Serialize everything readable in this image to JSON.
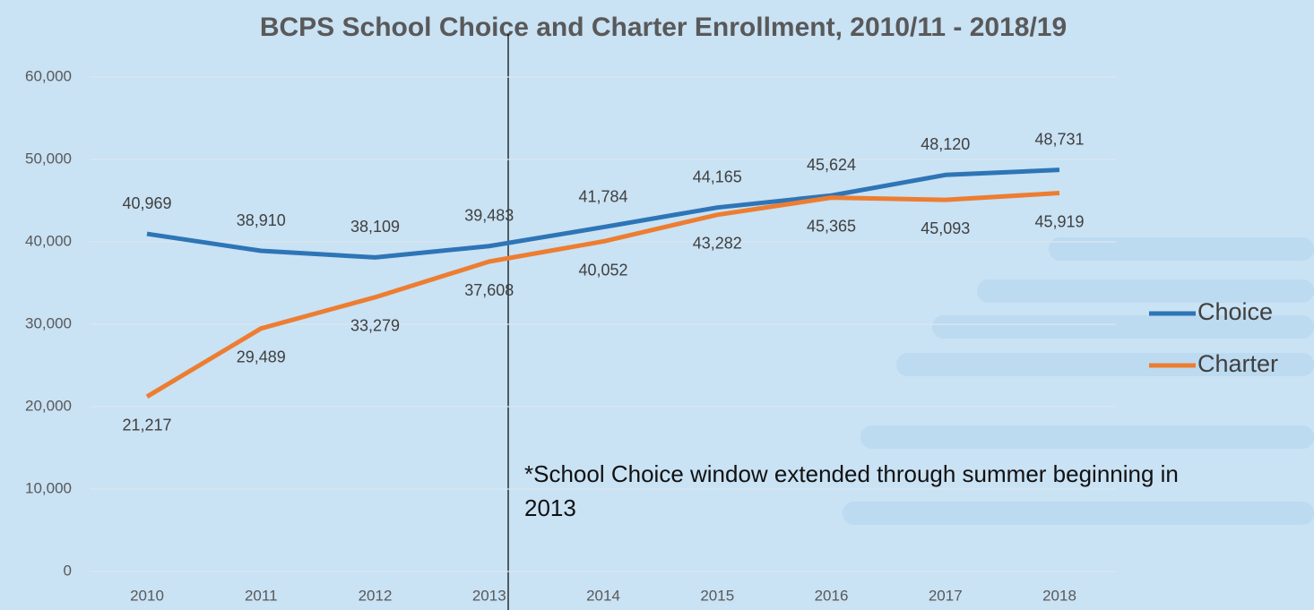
{
  "chart_data": {
    "type": "line",
    "title": "BCPS School Choice and Charter Enrollment, 2010/11 - 2018/19",
    "annotation": "*School Choice window extended through summer beginning in 2013",
    "categories": [
      "2010",
      "2011",
      "2012",
      "2013",
      "2014",
      "2015",
      "2016",
      "2017",
      "2018"
    ],
    "series": [
      {
        "name": "Choice",
        "color": "#2e75b6",
        "values": [
          40969,
          38910,
          38109,
          39483,
          41784,
          44165,
          45624,
          48120,
          48731
        ],
        "value_labels": [
          "40,969",
          "38,910",
          "38,109",
          "39,483",
          "41,784",
          "44,165",
          "45,624",
          "48,120",
          "48,731"
        ]
      },
      {
        "name": "Charter",
        "color": "#ed7d31",
        "values": [
          21217,
          29489,
          33279,
          37608,
          40052,
          43282,
          45365,
          45093,
          45919
        ],
        "value_labels": [
          "21,217",
          "29,489",
          "33,279",
          "37,608",
          "40,052",
          "43,282",
          "45,365",
          "45,093",
          "45,919"
        ]
      }
    ],
    "ylim": [
      0,
      60000
    ],
    "yticks": [
      0,
      {
        "value": 10000,
        "label": "10,000"
      },
      {
        "value": 20000,
        "label": "20,000"
      },
      {
        "value": 30000,
        "label": "30,000"
      },
      {
        "value": 40000,
        "label": "40,000"
      },
      {
        "value": 50000,
        "label": "50,000"
      },
      {
        "value": 60000,
        "label": "60,000"
      }
    ],
    "grid": true,
    "legend": "right"
  }
}
